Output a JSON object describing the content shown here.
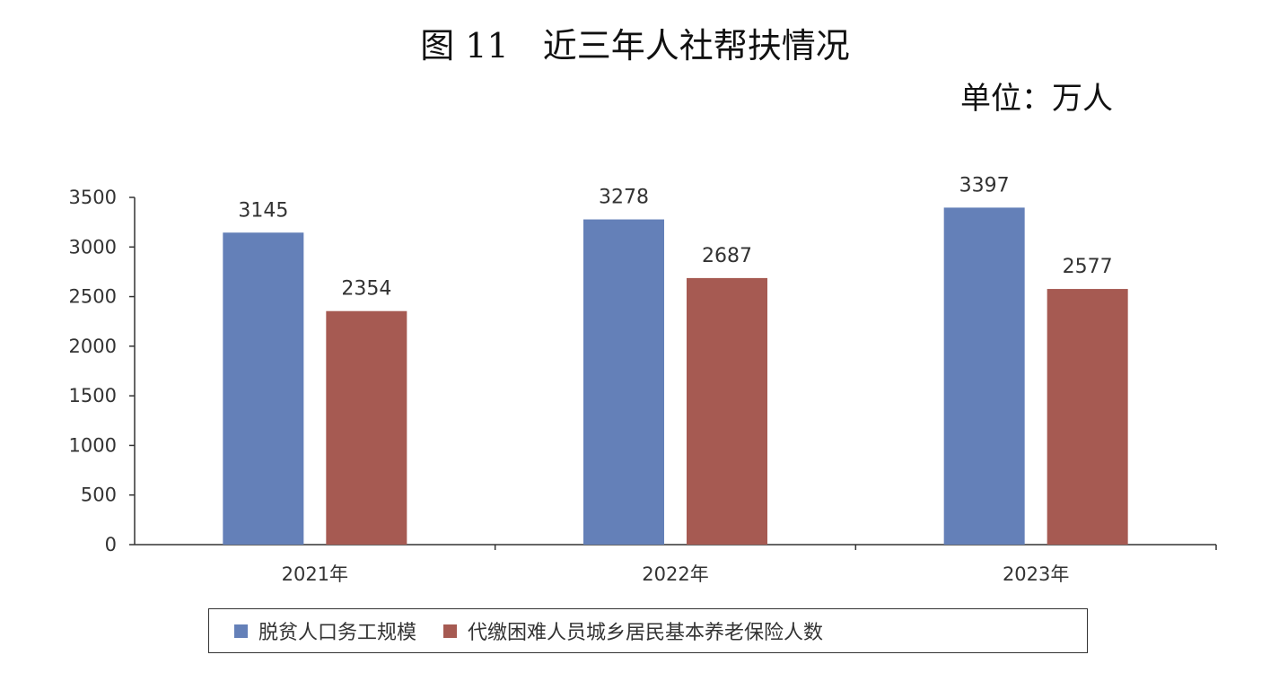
{
  "header": {
    "title": "图 11　近三年人社帮扶情况",
    "unit": "单位：万人"
  },
  "chart_data": {
    "type": "bar",
    "categories": [
      "2021年",
      "2022年",
      "2023年"
    ],
    "series": [
      {
        "name": "脱贫人口务工规模",
        "color": "#6480B8",
        "values": [
          3145,
          3278,
          3397
        ]
      },
      {
        "name": "代缴困难人员城乡居民基本养老保险人数",
        "color": "#A65A52",
        "values": [
          2354,
          2687,
          2577
        ]
      }
    ],
    "yticks": [
      "0",
      "500",
      "1000",
      "1500",
      "2000",
      "2500",
      "3000",
      "3500"
    ],
    "ylim": [
      0,
      3500
    ],
    "grid": false,
    "legend_position": "bottom"
  }
}
